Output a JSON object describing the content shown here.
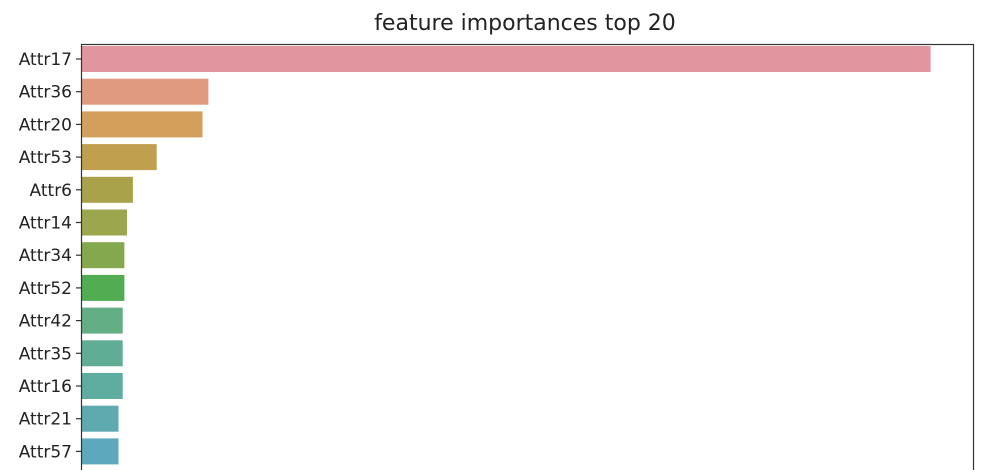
{
  "chart_data": {
    "type": "bar",
    "orientation": "horizontal",
    "title": "feature importances top 20",
    "xlabel": "",
    "ylabel": "",
    "categories": [
      "Attr17",
      "Attr36",
      "Attr20",
      "Attr53",
      "Attr6",
      "Attr14",
      "Attr34",
      "Attr52",
      "Attr42",
      "Attr35",
      "Attr16",
      "Attr21",
      "Attr57"
    ],
    "values": [
      1.0,
      0.149,
      0.142,
      0.088,
      0.06,
      0.053,
      0.05,
      0.05,
      0.048,
      0.048,
      0.048,
      0.043,
      0.043
    ],
    "xlim": [
      0,
      1.05
    ],
    "grid": false,
    "colors": [
      "#e1959f",
      "#df9a80",
      "#d3a05b",
      "#c0a04e",
      "#a9a24b",
      "#9ca64c",
      "#84a84e",
      "#52ad52",
      "#63ae85",
      "#60ad95",
      "#5faca0",
      "#5eaaaf",
      "#5ea8be"
    ]
  }
}
